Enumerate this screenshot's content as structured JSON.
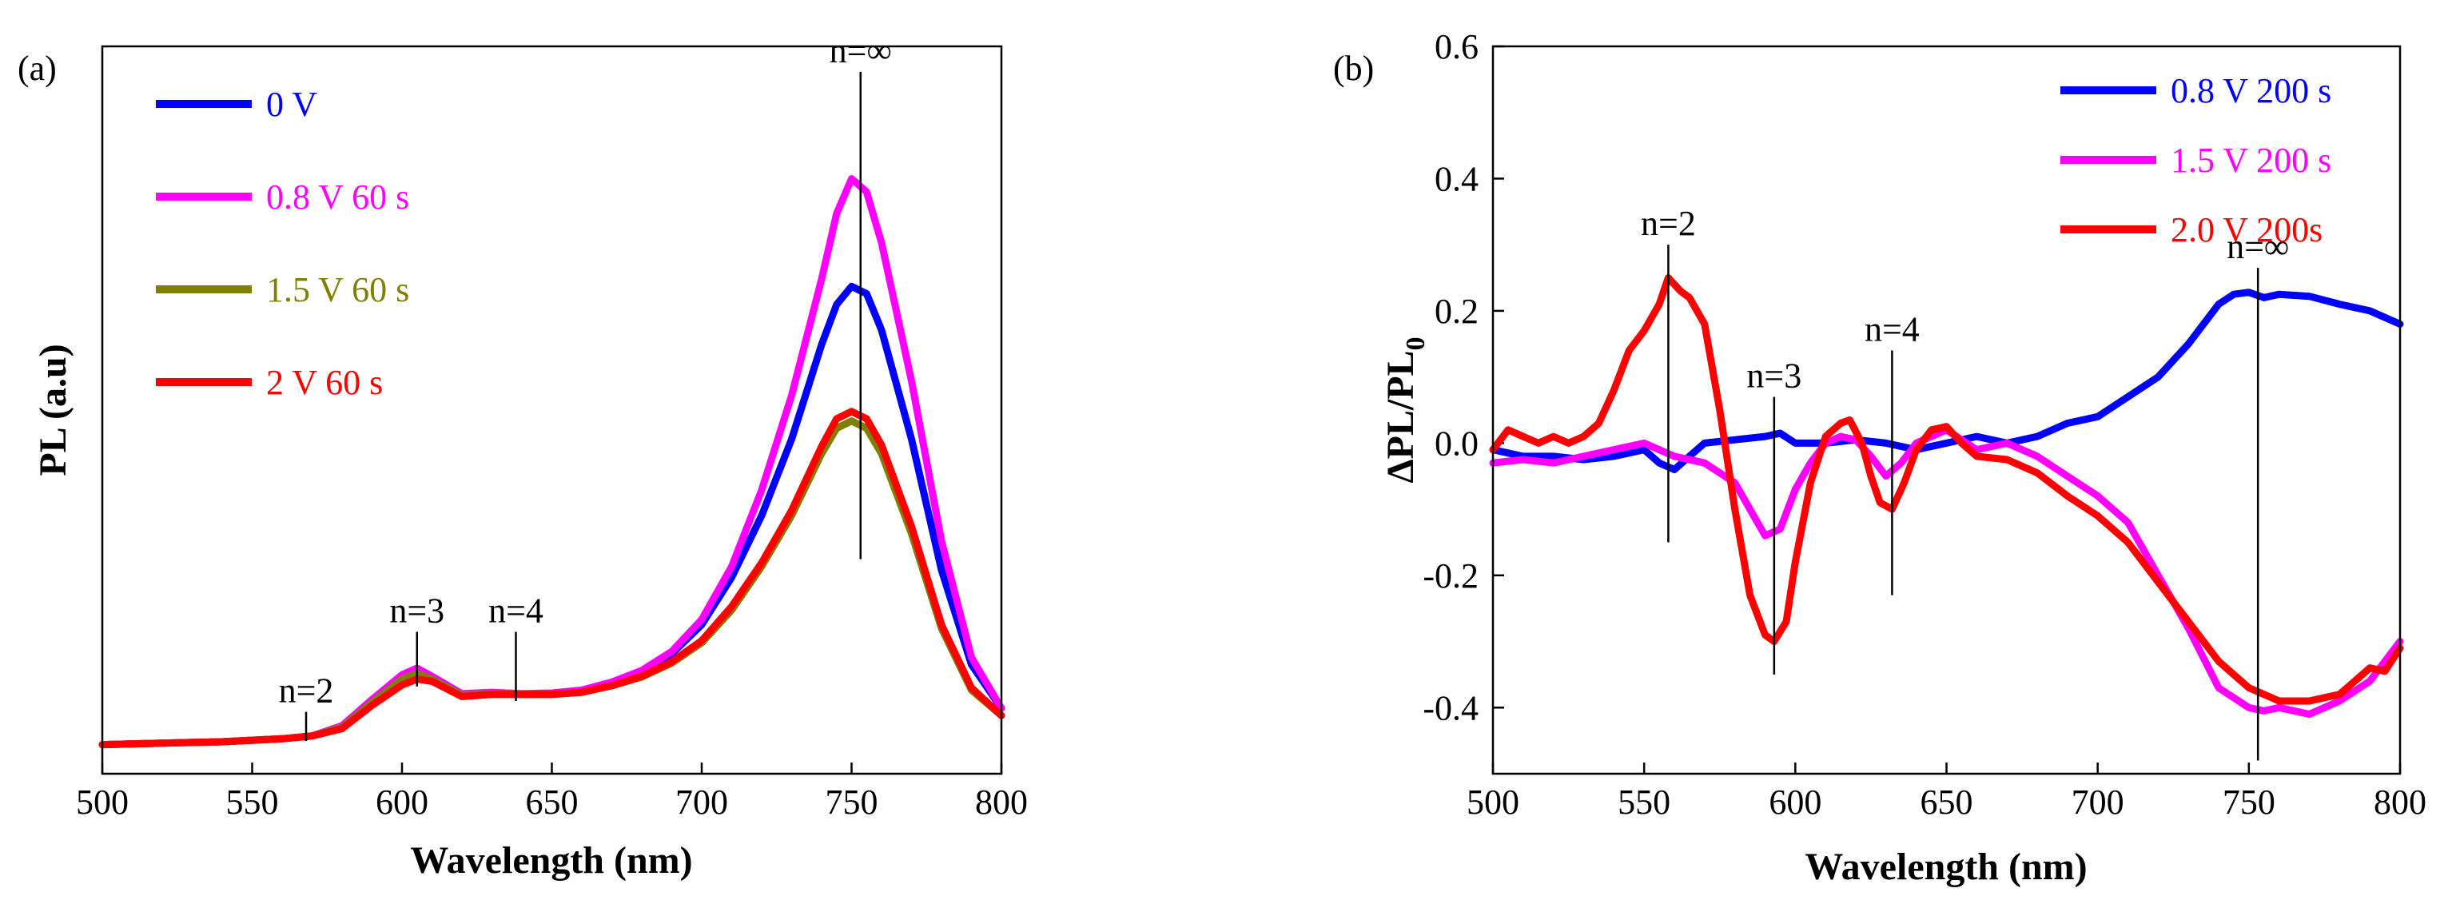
{
  "chart_data": [
    {
      "type": "line",
      "panel_label": "(a)",
      "title": "",
      "xlabel": "Wavelength (nm)",
      "ylabel": "PL (a.u)",
      "xlim": [
        500,
        800
      ],
      "ylim": [
        0,
        1.0
      ],
      "xticks": [
        "500",
        "550",
        "600",
        "650",
        "700",
        "750",
        "800"
      ],
      "legend_position": "top-left",
      "colors": {
        "blue": "#0000ff",
        "magenta": "#ff00ff",
        "olive": "#7f7f00",
        "red": "#ff0000"
      },
      "series": [
        {
          "name": "0 V",
          "color": "#0000ff",
          "x": [
            500,
            520,
            540,
            560,
            570,
            580,
            590,
            600,
            605,
            610,
            620,
            630,
            640,
            650,
            660,
            670,
            680,
            690,
            700,
            710,
            720,
            730,
            740,
            745,
            750,
            755,
            760,
            770,
            780,
            790,
            800
          ],
          "y": [
            0.04,
            0.042,
            0.044,
            0.048,
            0.052,
            0.065,
            0.1,
            0.133,
            0.142,
            0.132,
            0.109,
            0.111,
            0.109,
            0.11,
            0.114,
            0.125,
            0.14,
            0.165,
            0.205,
            0.27,
            0.355,
            0.46,
            0.59,
            0.645,
            0.67,
            0.66,
            0.61,
            0.46,
            0.28,
            0.15,
            0.09
          ]
        },
        {
          "name": "0.8 V 60 s",
          "color": "#ff00ff",
          "x": [
            500,
            520,
            540,
            560,
            570,
            580,
            590,
            600,
            605,
            610,
            620,
            630,
            640,
            650,
            660,
            670,
            680,
            690,
            700,
            710,
            720,
            730,
            740,
            745,
            750,
            755,
            760,
            770,
            780,
            790,
            800
          ],
          "y": [
            0.04,
            0.042,
            0.044,
            0.048,
            0.052,
            0.066,
            0.102,
            0.136,
            0.145,
            0.134,
            0.11,
            0.112,
            0.11,
            0.111,
            0.115,
            0.126,
            0.142,
            0.168,
            0.212,
            0.285,
            0.39,
            0.52,
            0.68,
            0.77,
            0.818,
            0.8,
            0.73,
            0.54,
            0.32,
            0.16,
            0.09
          ]
        },
        {
          "name": "1.5 V 60 s",
          "color": "#7f7f00",
          "x": [
            500,
            520,
            540,
            560,
            570,
            580,
            590,
            600,
            605,
            610,
            620,
            630,
            640,
            650,
            660,
            670,
            680,
            690,
            700,
            710,
            720,
            730,
            740,
            745,
            750,
            755,
            760,
            770,
            780,
            790,
            800
          ],
          "y": [
            0.04,
            0.042,
            0.044,
            0.048,
            0.052,
            0.064,
            0.098,
            0.13,
            0.138,
            0.13,
            0.108,
            0.11,
            0.109,
            0.109,
            0.112,
            0.121,
            0.133,
            0.152,
            0.18,
            0.225,
            0.285,
            0.355,
            0.44,
            0.475,
            0.485,
            0.475,
            0.44,
            0.33,
            0.2,
            0.115,
            0.08
          ]
        },
        {
          "name": "2 V 60 s",
          "color": "#ff0000",
          "x": [
            500,
            520,
            540,
            560,
            570,
            580,
            590,
            600,
            605,
            610,
            620,
            630,
            640,
            650,
            660,
            670,
            680,
            690,
            700,
            710,
            720,
            730,
            740,
            745,
            750,
            755,
            760,
            770,
            780,
            790,
            800
          ],
          "y": [
            0.04,
            0.042,
            0.044,
            0.048,
            0.052,
            0.062,
            0.094,
            0.122,
            0.13,
            0.127,
            0.106,
            0.109,
            0.109,
            0.109,
            0.112,
            0.121,
            0.134,
            0.154,
            0.183,
            0.23,
            0.29,
            0.362,
            0.45,
            0.488,
            0.498,
            0.488,
            0.452,
            0.34,
            0.205,
            0.118,
            0.08
          ]
        }
      ],
      "annotations": [
        {
          "text": "n=2",
          "x": 568,
          "y_top": 0.085,
          "y_bottom": 0.045
        },
        {
          "text": "n=3",
          "x": 605,
          "y_top": 0.195,
          "y_bottom": 0.12
        },
        {
          "text": "n=4",
          "x": 638,
          "y_top": 0.195,
          "y_bottom": 0.1
        },
        {
          "text": "n=∞",
          "x": 753,
          "y_top": 0.965,
          "y_bottom": 0.295
        }
      ]
    },
    {
      "type": "line",
      "panel_label": "(b)",
      "title": "",
      "xlabel": "Wavelength (nm)",
      "ylabel": "ΔPL/PL",
      "ylabel_sub": "0",
      "xlim": [
        500,
        800
      ],
      "ylim": [
        -0.5,
        0.6
      ],
      "xticks": [
        "500",
        "550",
        "600",
        "650",
        "700",
        "750",
        "800"
      ],
      "yticks": [
        "-0.4",
        "-0.2",
        "0.0",
        "0.2",
        "0.4",
        "0.6"
      ],
      "legend_position": "top-right",
      "colors": {
        "blue": "#0000ff",
        "magenta": "#ff00ff",
        "red": "#ff0000"
      },
      "series": [
        {
          "name": "0.8 V 200 s",
          "color": "#0000ff",
          "x": [
            500,
            510,
            520,
            530,
            540,
            550,
            555,
            560,
            565,
            570,
            580,
            590,
            595,
            600,
            610,
            620,
            630,
            640,
            650,
            660,
            670,
            680,
            690,
            700,
            710,
            720,
            730,
            740,
            745,
            750,
            755,
            760,
            770,
            780,
            790,
            800
          ],
          "y": [
            -0.01,
            -0.02,
            -0.02,
            -0.025,
            -0.02,
            -0.01,
            -0.03,
            -0.04,
            -0.02,
            0.0,
            0.005,
            0.01,
            0.015,
            0.0,
            0.0,
            0.005,
            0.0,
            -0.01,
            0.0,
            0.01,
            0.0,
            0.01,
            0.03,
            0.04,
            0.07,
            0.1,
            0.15,
            0.21,
            0.225,
            0.228,
            0.22,
            0.225,
            0.222,
            0.21,
            0.2,
            0.18
          ]
        },
        {
          "name": "1.5 V 200 s",
          "color": "#ff00ff",
          "x": [
            500,
            510,
            520,
            530,
            540,
            550,
            560,
            570,
            580,
            585,
            590,
            595,
            600,
            605,
            610,
            615,
            620,
            625,
            630,
            635,
            640,
            650,
            660,
            670,
            680,
            690,
            700,
            710,
            720,
            730,
            740,
            750,
            755,
            760,
            770,
            780,
            790,
            800
          ],
          "y": [
            -0.03,
            -0.025,
            -0.03,
            -0.02,
            -0.01,
            0.0,
            -0.02,
            -0.03,
            -0.06,
            -0.1,
            -0.14,
            -0.13,
            -0.07,
            -0.03,
            0.0,
            0.01,
            0.005,
            -0.02,
            -0.05,
            -0.03,
            0.0,
            0.02,
            -0.01,
            0.0,
            -0.02,
            -0.05,
            -0.08,
            -0.12,
            -0.2,
            -0.28,
            -0.37,
            -0.4,
            -0.405,
            -0.4,
            -0.41,
            -0.39,
            -0.36,
            -0.3
          ]
        },
        {
          "name": "2.0 V 200s",
          "color": "#ff0000",
          "x": [
            500,
            505,
            510,
            515,
            520,
            525,
            530,
            535,
            540,
            545,
            550,
            555,
            558,
            562,
            565,
            570,
            575,
            580,
            585,
            590,
            593,
            597,
            600,
            605,
            610,
            615,
            618,
            622,
            625,
            628,
            632,
            636,
            640,
            645,
            650,
            655,
            660,
            670,
            680,
            690,
            700,
            710,
            720,
            730,
            740,
            750,
            760,
            770,
            780,
            785,
            790,
            795,
            800
          ],
          "y": [
            -0.01,
            0.02,
            0.01,
            0.0,
            0.01,
            0.0,
            0.01,
            0.03,
            0.08,
            0.14,
            0.17,
            0.21,
            0.25,
            0.23,
            0.22,
            0.18,
            0.05,
            -0.1,
            -0.23,
            -0.29,
            -0.3,
            -0.27,
            -0.18,
            -0.06,
            0.01,
            0.03,
            0.035,
            0.0,
            -0.05,
            -0.09,
            -0.1,
            -0.06,
            -0.01,
            0.02,
            0.025,
            0.0,
            -0.02,
            -0.025,
            -0.045,
            -0.08,
            -0.11,
            -0.15,
            -0.21,
            -0.27,
            -0.33,
            -0.37,
            -0.39,
            -0.39,
            -0.38,
            -0.36,
            -0.34,
            -0.345,
            -0.31
          ]
        }
      ],
      "annotations": [
        {
          "text": "n=2",
          "x": 558,
          "y_top": 0.3,
          "y_bottom": -0.15
        },
        {
          "text": "n=3",
          "x": 593,
          "y_top": 0.07,
          "y_bottom": -0.35
        },
        {
          "text": "n=4",
          "x": 632,
          "y_top": 0.14,
          "y_bottom": -0.23
        },
        {
          "text": "n=∞",
          "x": 753,
          "y_top": 0.265,
          "y_bottom": -0.48
        }
      ]
    }
  ]
}
